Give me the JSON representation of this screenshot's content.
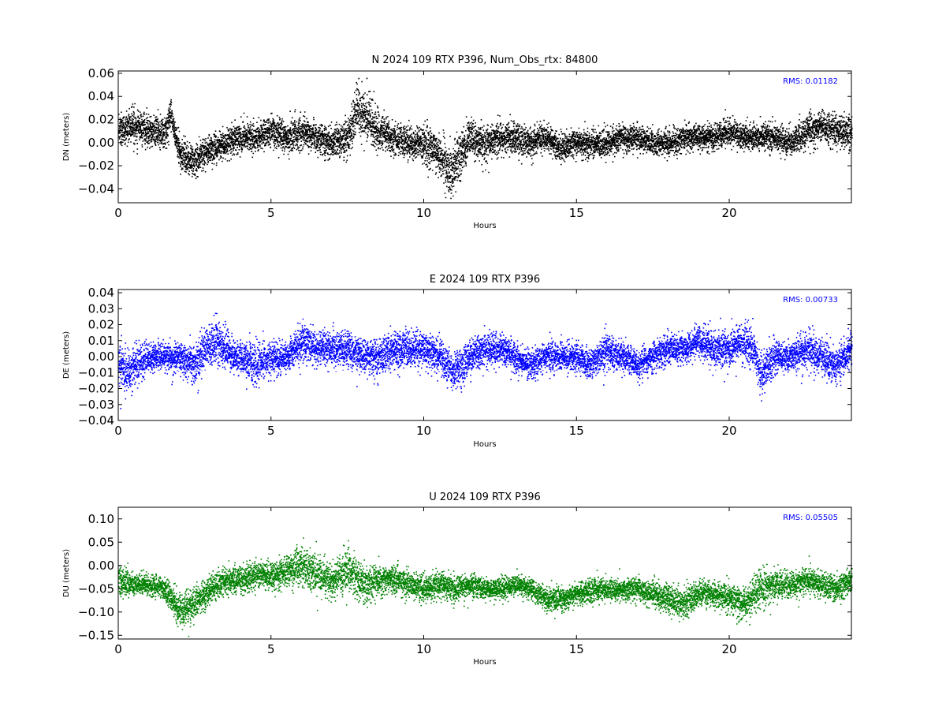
{
  "chart_data": [
    {
      "type": "scatter",
      "title": "N 2024 109 RTX  P396, Num_Obs_rtx: 84800",
      "xlabel": "Hours",
      "ylabel": "DN (meters)",
      "xlim": [
        0,
        24
      ],
      "ylim": [
        -0.052,
        0.062
      ],
      "xticks": [
        0,
        5,
        10,
        15,
        20
      ],
      "yticks": [
        0.06,
        0.04,
        0.02,
        0.0,
        -0.02,
        -0.04
      ],
      "ytick_labels": [
        "0.06",
        "0.04",
        "0.02",
        "0.00",
        "−0.02",
        "−0.04"
      ],
      "rms_text": "RMS:  0.01182",
      "color": "#000000",
      "rms_color": "#0000ff",
      "grid": false,
      "series": [
        {
          "x": [
            0,
            0.5,
            1,
            1.5,
            1.7,
            2,
            2.5,
            3,
            3.5,
            4,
            4.5,
            5,
            5.5,
            6,
            6.5,
            7,
            7.5,
            7.8,
            8.2,
            8.5,
            9,
            9.5,
            10,
            10.5,
            10.8,
            11,
            11.5,
            12,
            12.5,
            13,
            13.5,
            14,
            14.5,
            15,
            15.5,
            16,
            16.5,
            17,
            17.5,
            18,
            18.5,
            19,
            19.5,
            20,
            20.5,
            21,
            21.5,
            22,
            22.5,
            23,
            23.5,
            24
          ],
          "y": [
            0.012,
            0.015,
            0.01,
            0.008,
            0.025,
            -0.01,
            -0.015,
            -0.005,
            0.0,
            0.005,
            0.005,
            0.01,
            0.005,
            0.01,
            0.005,
            0.0,
            0.005,
            0.03,
            0.02,
            0.01,
            0.005,
            0.0,
            0.0,
            -0.01,
            -0.025,
            -0.02,
            0.005,
            0.0,
            0.005,
            0.005,
            0.0,
            0.005,
            -0.005,
            0.0,
            0.0,
            0.0,
            0.005,
            0.005,
            0.0,
            0.0,
            0.005,
            0.005,
            0.005,
            0.01,
            0.005,
            0.005,
            0.005,
            0.0,
            0.01,
            0.015,
            0.01,
            0.01
          ],
          "spread": [
            0.012,
            0.012,
            0.012,
            0.012,
            0.012,
            0.012,
            0.012,
            0.012,
            0.012,
            0.012,
            0.012,
            0.012,
            0.012,
            0.012,
            0.012,
            0.012,
            0.015,
            0.02,
            0.02,
            0.015,
            0.012,
            0.012,
            0.015,
            0.018,
            0.02,
            0.02,
            0.015,
            0.015,
            0.012,
            0.012,
            0.012,
            0.01,
            0.01,
            0.01,
            0.01,
            0.01,
            0.01,
            0.01,
            0.01,
            0.01,
            0.01,
            0.01,
            0.01,
            0.01,
            0.01,
            0.01,
            0.01,
            0.01,
            0.012,
            0.012,
            0.012,
            0.012
          ]
        }
      ]
    },
    {
      "type": "scatter",
      "title": "E 2024 109 RTX  P396",
      "xlabel": "Hours",
      "ylabel": "DE (meters)",
      "xlim": [
        0,
        24
      ],
      "ylim": [
        -0.04,
        0.042
      ],
      "xticks": [
        0,
        5,
        10,
        15,
        20
      ],
      "yticks": [
        0.04,
        0.03,
        0.02,
        0.01,
        0.0,
        -0.01,
        -0.02,
        -0.03,
        -0.04
      ],
      "ytick_labels": [
        "0.04",
        "0.03",
        "0.02",
        "0.01",
        "0.00",
        "−0.01",
        "−0.02",
        "−0.03",
        "−0.04"
      ],
      "rms_text": "RMS:  0.00733",
      "color": "#0000ff",
      "rms_color": "#0000ff",
      "grid": false,
      "series": [
        {
          "x": [
            0,
            0.3,
            0.5,
            1,
            1.5,
            2,
            2.5,
            2.8,
            3.2,
            3.5,
            4,
            4.5,
            5,
            5.5,
            6,
            6.5,
            7,
            7.5,
            8,
            8.5,
            9,
            9.5,
            10,
            10.5,
            11,
            11.5,
            12,
            12.5,
            13,
            13.5,
            14,
            14.5,
            15,
            15.5,
            16,
            16.5,
            17,
            17.5,
            18,
            18.5,
            19,
            19.5,
            20,
            20.3,
            20.8,
            21,
            21.5,
            22,
            22.5,
            23,
            23.5,
            24
          ],
          "y": [
            -0.005,
            -0.01,
            -0.005,
            0.0,
            0.0,
            0.0,
            -0.005,
            0.005,
            0.01,
            0.005,
            0.0,
            -0.005,
            0.0,
            0.0,
            0.01,
            0.005,
            0.005,
            0.005,
            0.0,
            0.0,
            0.005,
            0.005,
            0.005,
            0.0,
            -0.01,
            0.0,
            0.005,
            0.005,
            0.0,
            -0.005,
            0.0,
            0.0,
            0.0,
            -0.005,
            0.005,
            0.0,
            -0.005,
            0.0,
            0.005,
            0.005,
            0.01,
            0.005,
            0.005,
            0.01,
            0.005,
            -0.01,
            0.0,
            0.0,
            0.005,
            0.0,
            -0.005,
            0.005
          ],
          "spread": [
            0.012,
            0.012,
            0.01,
            0.008,
            0.008,
            0.008,
            0.012,
            0.012,
            0.012,
            0.01,
            0.01,
            0.012,
            0.01,
            0.008,
            0.01,
            0.01,
            0.01,
            0.01,
            0.01,
            0.01,
            0.01,
            0.01,
            0.01,
            0.01,
            0.01,
            0.01,
            0.01,
            0.008,
            0.008,
            0.008,
            0.008,
            0.008,
            0.008,
            0.008,
            0.01,
            0.008,
            0.008,
            0.008,
            0.008,
            0.008,
            0.01,
            0.01,
            0.01,
            0.012,
            0.01,
            0.012,
            0.01,
            0.008,
            0.01,
            0.01,
            0.01,
            0.01
          ]
        }
      ]
    },
    {
      "type": "scatter",
      "title": "U 2024 109 RTX  P396",
      "xlabel": "Hours",
      "ylabel": "DU (meters)",
      "xlim": [
        0,
        24
      ],
      "ylim": [
        -0.158,
        0.125
      ],
      "xticks": [
        0,
        5,
        10,
        15,
        20
      ],
      "yticks": [
        0.1,
        0.05,
        0.0,
        -0.05,
        -0.1,
        -0.15
      ],
      "ytick_labels": [
        "0.10",
        "0.05",
        "0.00",
        "−0.05",
        "−0.10",
        "−0.15"
      ],
      "rms_text": "RMS:  0.05505",
      "color": "#008000",
      "rms_color": "#0000ff",
      "grid": false,
      "series": [
        {
          "x": [
            0,
            0.5,
            1,
            1.5,
            2,
            2.5,
            3,
            3.5,
            4,
            4.5,
            5,
            5.5,
            6,
            6.5,
            7,
            7.5,
            8,
            8.5,
            9,
            9.5,
            10,
            10.5,
            11,
            11.5,
            12,
            12.5,
            13,
            13.5,
            14,
            14.5,
            15,
            15.5,
            16,
            16.5,
            17,
            17.5,
            18,
            18.5,
            19,
            19.5,
            20,
            20.5,
            21,
            21.5,
            22,
            22.5,
            23,
            23.5,
            24
          ],
          "y": [
            -0.03,
            -0.04,
            -0.04,
            -0.05,
            -0.1,
            -0.08,
            -0.05,
            -0.03,
            -0.03,
            -0.02,
            -0.02,
            -0.01,
            0.0,
            -0.02,
            -0.03,
            -0.01,
            -0.04,
            -0.03,
            -0.03,
            -0.04,
            -0.05,
            -0.04,
            -0.05,
            -0.04,
            -0.05,
            -0.05,
            -0.04,
            -0.05,
            -0.07,
            -0.07,
            -0.06,
            -0.05,
            -0.05,
            -0.05,
            -0.05,
            -0.06,
            -0.07,
            -0.08,
            -0.06,
            -0.06,
            -0.07,
            -0.08,
            -0.05,
            -0.04,
            -0.04,
            -0.03,
            -0.04,
            -0.05,
            -0.03
          ],
          "spread": [
            0.03,
            0.02,
            0.02,
            0.02,
            0.035,
            0.03,
            0.025,
            0.025,
            0.025,
            0.025,
            0.025,
            0.03,
            0.04,
            0.035,
            0.035,
            0.04,
            0.035,
            0.03,
            0.025,
            0.025,
            0.025,
            0.025,
            0.025,
            0.02,
            0.02,
            0.02,
            0.02,
            0.02,
            0.02,
            0.02,
            0.02,
            0.025,
            0.02,
            0.02,
            0.025,
            0.025,
            0.03,
            0.03,
            0.025,
            0.025,
            0.03,
            0.03,
            0.035,
            0.03,
            0.025,
            0.025,
            0.025,
            0.025,
            0.025
          ]
        }
      ]
    }
  ]
}
